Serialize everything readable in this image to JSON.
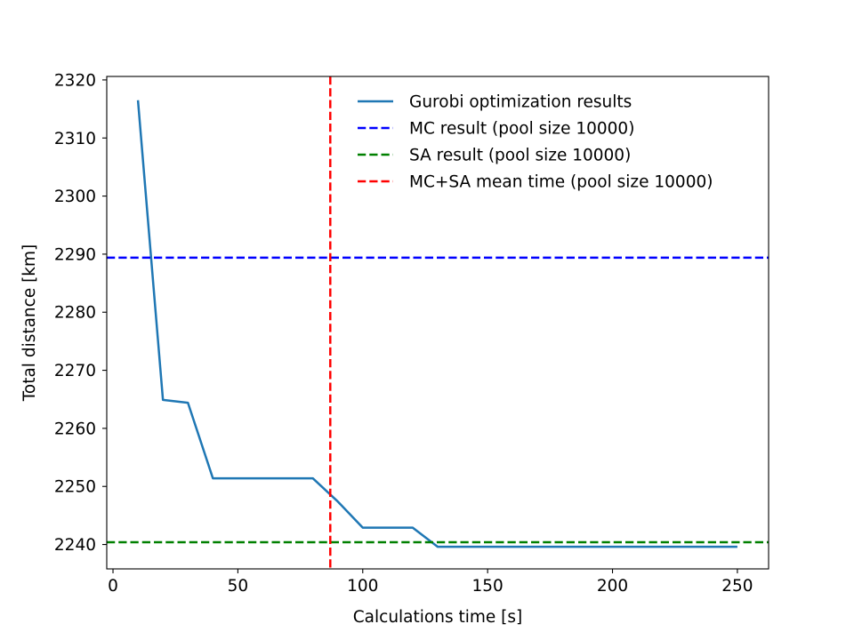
{
  "chart_data": {
    "type": "line",
    "title": "",
    "xlabel": "Calculations time [s]",
    "ylabel": "Total distance [km]",
    "xlim": [
      -2.5,
      262.5
    ],
    "ylim": [
      2235.8,
      2320.6
    ],
    "xticks": [
      0,
      50,
      100,
      150,
      200,
      250
    ],
    "yticks": [
      2240,
      2250,
      2260,
      2270,
      2280,
      2290,
      2300,
      2310,
      2320
    ],
    "grid": false,
    "legend_position": "upper right",
    "series": [
      {
        "name": "Gurobi optimization results",
        "kind": "line",
        "color": "#1f77b4",
        "x": [
          10,
          20,
          30,
          40,
          50,
          60,
          70,
          80,
          90,
          100,
          110,
          120,
          130,
          140,
          150,
          160,
          170,
          180,
          190,
          200,
          210,
          220,
          230,
          240,
          250
        ],
        "y": [
          2316.5,
          2264.9,
          2264.4,
          2251.4,
          2251.4,
          2251.4,
          2251.4,
          2251.4,
          2247.4,
          2242.9,
          2242.9,
          2242.9,
          2239.6,
          2239.6,
          2239.6,
          2239.6,
          2239.6,
          2239.6,
          2239.6,
          2239.6,
          2239.6,
          2239.6,
          2239.6,
          2239.6,
          2239.6
        ]
      },
      {
        "name": "MC result (pool size 10000)",
        "kind": "hline",
        "color": "#0000ff",
        "y": 2289.4
      },
      {
        "name": "SA result (pool size 10000)",
        "kind": "hline",
        "color": "#008000",
        "y": 2240.4
      },
      {
        "name": "MC+SA mean time (pool size 10000)",
        "kind": "vline",
        "color": "#ff0000",
        "x": 87
      }
    ]
  }
}
